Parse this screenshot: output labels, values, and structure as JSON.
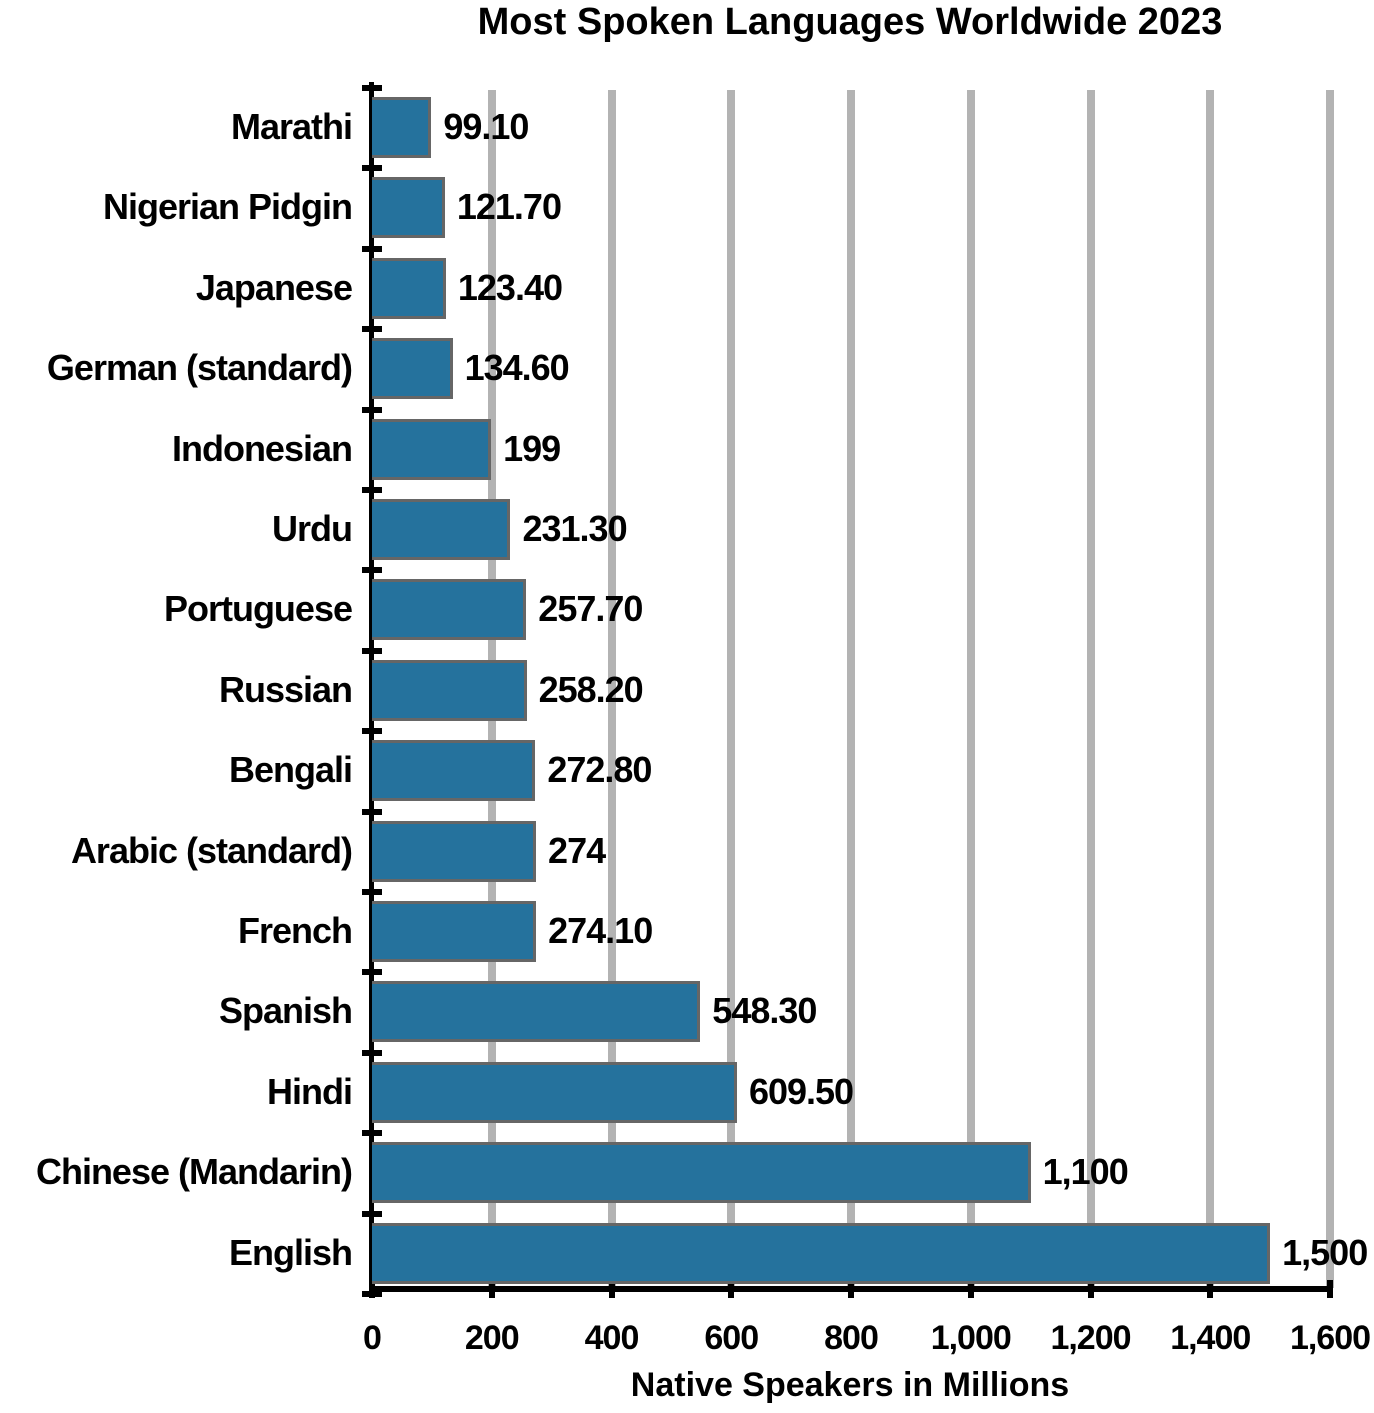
{
  "chart_data": {
    "type": "bar",
    "orientation": "horizontal",
    "title": "Most Spoken Languages Worldwide 2023",
    "xlabel": "Native Speakers in Millions",
    "ylabel": "",
    "xlim": [
      0,
      1600
    ],
    "xticks": [
      0,
      200,
      400,
      600,
      800,
      1000,
      1200,
      1400,
      1600
    ],
    "xtick_labels": [
      "0",
      "200",
      "400",
      "600",
      "800",
      "1,000",
      "1,200",
      "1,400",
      "1,600"
    ],
    "grid": "vertical",
    "legend": null,
    "bar_color": "#25729d",
    "categories": [
      "Marathi",
      "Nigerian Pidgin",
      "Japanese",
      "German (standard)",
      "Indonesian",
      "Urdu",
      "Portuguese",
      "Russian",
      "Bengali",
      "Arabic (standard)",
      "French",
      "Spanish",
      "Hindi",
      "Chinese (Mandarin)",
      "English"
    ],
    "values": [
      99.1,
      121.7,
      123.4,
      134.6,
      199,
      231.3,
      257.7,
      258.2,
      272.8,
      274,
      274.1,
      548.3,
      609.5,
      1100,
      1500
    ],
    "value_labels": [
      "99.10",
      "121.70",
      "123.40",
      "134.60",
      "199",
      "231.30",
      "257.70",
      "258.20",
      "272.80",
      "274",
      "274.10",
      "548.30",
      "609.50",
      "1,100",
      "1,500"
    ]
  },
  "colors": {
    "bar": "#25729d",
    "bar_border": "#666666",
    "grid": "#b3b3b3",
    "axis": "#000000"
  }
}
